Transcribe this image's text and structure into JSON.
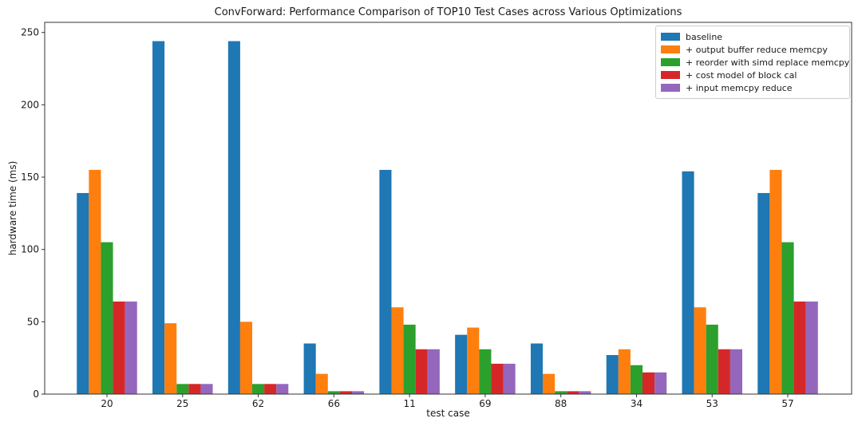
{
  "figure": {
    "title": "ConvForward: Performance Comparison of TOP10 Test Cases across Various Optimizations"
  },
  "chart_data": {
    "type": "bar",
    "title": "ConvForward: Performance Comparison of TOP10 Test Cases across Various Optimizations",
    "xlabel": "test case",
    "ylabel": "hardware time (ms)",
    "categories": [
      "20",
      "25",
      "62",
      "66",
      "11",
      "69",
      "88",
      "34",
      "53",
      "57"
    ],
    "series": [
      {
        "name": "baseline",
        "color": "#1f77b4",
        "values": [
          139,
          244,
          244,
          35,
          155,
          41,
          35,
          27,
          154,
          139
        ]
      },
      {
        "name": "+ output buffer reduce memcpy",
        "color": "#ff7f0e",
        "values": [
          155,
          49,
          50,
          14,
          60,
          46,
          14,
          31,
          60,
          155
        ]
      },
      {
        "name": "+ reorder with simd replace memcpy",
        "color": "#2ca02c",
        "values": [
          105,
          7,
          7,
          2,
          48,
          31,
          2,
          20,
          48,
          105
        ]
      },
      {
        "name": "+ cost model of block cal",
        "color": "#d62728",
        "values": [
          64,
          7,
          7,
          2,
          31,
          21,
          2,
          15,
          31,
          64
        ]
      },
      {
        "name": "+ input memcpy reduce",
        "color": "#9467bd",
        "values": [
          64,
          7,
          7,
          2,
          31,
          21,
          2,
          15,
          31,
          64
        ]
      }
    ],
    "yticks": [
      0,
      50,
      100,
      150,
      200,
      250
    ],
    "ylim": [
      0,
      257
    ],
    "grid": false,
    "legend_position": "upper right"
  }
}
